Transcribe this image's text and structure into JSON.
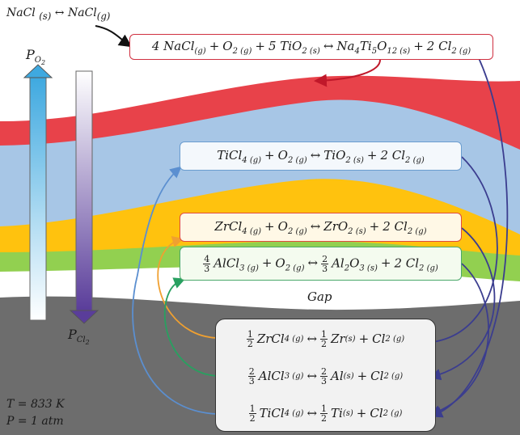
{
  "top_reaction": {
    "left": "NaCl",
    "left_state": "(s)",
    "arrow": "↔",
    "right": "NaCl",
    "right_state": "(g)"
  },
  "labels": {
    "po2": "P",
    "po2_sub": "O",
    "po2_subsub": "2",
    "pcl2": "P",
    "pcl2_sub": "Cl",
    "pcl2_subsub": "2",
    "gap": "Gap",
    "temperature": "T = 833 K",
    "pressure": "P = 1 atm"
  },
  "equations": {
    "na": "4 NaCl(g) + O2(g) + 5 TiO2(s) ↔ Na4Ti5O12(s) + 2 Cl2(g)",
    "ti": "TiCl4(g) + O2(g) ↔ TiO2(s) + 2 Cl2(g)",
    "zr": "ZrCl4(g) + O2(g) ↔ ZrO2(s) + 2 Cl2(g)",
    "al": "4/3 AlCl3(g) + O2(g) ↔ 2/3 Al2O3(s) + 2 Cl2(g)",
    "zr_red": "1/2 ZrCl4(g) ↔ 1/2 Zr(s) + Cl2(g)",
    "al_red": "2/3 AlCl3(g) ↔ 2/3 Al(s) + Cl2(g)",
    "ti_red": "1/2 TiCl4(g) ↔ 1/2 Ti(s) + Cl2(g)"
  },
  "colors": {
    "na_layer": "#e8424a",
    "tio2_layer": "#a7c6e6",
    "zro2_layer": "#ffc20e",
    "al2o3_layer": "#92d050",
    "metal": "#6d6d6d",
    "arrow_o2": "#3fa9e0",
    "arrow_cl2": "#5a3d9a",
    "ti_arrow": "#5b8fd0",
    "zr_arrow": "#f0a030",
    "al_arrow": "#28a060",
    "cl2_arrow": "#3b3d8f"
  }
}
